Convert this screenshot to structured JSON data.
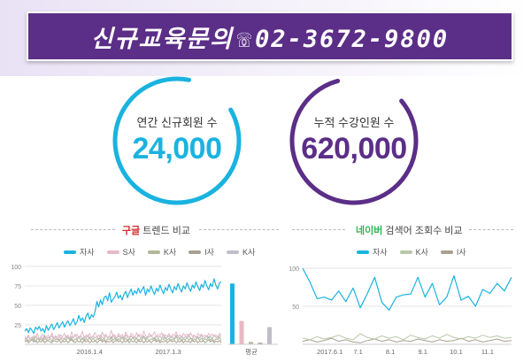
{
  "banner": {
    "text": "신규교육문의",
    "phone_glyph": "☏",
    "phone": "02-3672-9800"
  },
  "stats": [
    {
      "label": "연간 신규회원 수",
      "value": "24,000",
      "color": "#1ab3e0"
    },
    {
      "label": "누적 수강인원 수",
      "value": "620,000",
      "color": "#5b2e87"
    }
  ],
  "colors": {
    "accent_blue": "#1ab3e0",
    "accent_purple": "#5b2e87",
    "title_red": "#d42b2b",
    "title_green": "#2eb84f"
  },
  "chart_data": [
    {
      "type": "line",
      "title": {
        "highlight": "구글",
        "rest": " 트렌드 비교"
      },
      "legend": [
        "자사",
        "S사",
        "K사",
        "I사",
        "K사"
      ],
      "legend_colors": [
        "#1ab3e0",
        "#e8b8c4",
        "#b0b89a",
        "#a8a090",
        "#c0bcc8"
      ],
      "yticks": [
        25,
        50,
        75,
        100
      ],
      "ylim": [
        0,
        100
      ],
      "xticks": [
        {
          "label": "2016.1.4",
          "x": 0.33
        },
        {
          "label": "2017.1.3",
          "x": 0.73
        }
      ],
      "series": [
        {
          "values": [
            17,
            20,
            15,
            21,
            18,
            14,
            22,
            19,
            23,
            17,
            20,
            15,
            24,
            18,
            22,
            26,
            19,
            23,
            28,
            21,
            25,
            29,
            22,
            27,
            30,
            24,
            28,
            33,
            25,
            29,
            37,
            30,
            34,
            28,
            36,
            40,
            32,
            38,
            35,
            42,
            55,
            48,
            57,
            51,
            60,
            62,
            56,
            66,
            54,
            58,
            61,
            67,
            59,
            63,
            57,
            64,
            68,
            60,
            66,
            71,
            63,
            69,
            65,
            72,
            66,
            70,
            74,
            63,
            71,
            67,
            75,
            69,
            64,
            72,
            68,
            76,
            70,
            65,
            73,
            69,
            77,
            71,
            66,
            74,
            70,
            78,
            72,
            67,
            75,
            71,
            79,
            73,
            68,
            76,
            72,
            80,
            74,
            69,
            77,
            73,
            82,
            75,
            70,
            78,
            74,
            84,
            76,
            71,
            79,
            80
          ]
        },
        {
          "values": [
            10,
            7,
            12,
            6,
            9,
            11,
            8,
            14,
            7,
            10,
            13,
            6,
            9,
            12,
            8,
            15,
            7,
            11,
            9,
            13,
            6,
            10,
            14,
            8,
            12,
            7,
            16,
            9,
            11,
            13,
            8,
            10,
            17,
            7,
            12,
            9,
            14,
            8,
            11,
            15,
            9,
            12,
            7,
            16,
            10,
            13,
            8,
            11,
            18,
            9,
            12,
            7,
            14,
            10,
            13,
            8,
            16,
            11,
            9,
            14,
            12,
            8,
            15,
            10,
            13,
            9,
            17,
            11,
            8,
            14,
            10,
            12,
            16,
            9,
            13,
            11,
            15,
            8,
            12,
            10,
            14,
            9,
            13,
            11,
            16,
            10,
            12,
            8,
            14,
            11,
            13,
            9,
            15,
            10,
            12,
            8,
            14,
            11,
            13,
            10,
            12,
            9,
            14,
            11,
            13,
            10,
            12,
            9,
            14,
            12
          ]
        },
        {
          "values": [
            5,
            8,
            4,
            7,
            6,
            9,
            3,
            8,
            5,
            7,
            4,
            10,
            6,
            5,
            8,
            4,
            9,
            6,
            7,
            5,
            8,
            4,
            7,
            6,
            9,
            5,
            8,
            4,
            7,
            6,
            10,
            5,
            8,
            4,
            7,
            6,
            9,
            5,
            8,
            4,
            7,
            6,
            9,
            5,
            8,
            4,
            7,
            6,
            10,
            5,
            8,
            4,
            7,
            6,
            9,
            5,
            8,
            4,
            7,
            6,
            9,
            5,
            8,
            4,
            7,
            6,
            10,
            5,
            8,
            4,
            7,
            6,
            9,
            5,
            8,
            4,
            7,
            6,
            9,
            5,
            8,
            4,
            7,
            6,
            10,
            5,
            8,
            4,
            7,
            6,
            9,
            5,
            8,
            4,
            7,
            6,
            9,
            5,
            8,
            4,
            7,
            6,
            10,
            5,
            8,
            4,
            7,
            6,
            9,
            5
          ]
        },
        {
          "values": [
            3,
            5,
            2,
            4,
            6,
            3,
            5,
            2,
            4,
            3,
            6,
            2,
            4,
            5,
            3,
            2,
            5,
            4,
            3,
            6,
            2,
            4,
            3,
            5,
            2,
            4,
            6,
            3,
            2,
            5,
            3,
            4,
            2,
            6,
            3,
            5,
            2,
            4,
            3,
            5,
            2,
            4,
            6,
            3,
            5,
            2,
            4,
            3,
            5,
            2,
            4,
            6,
            3,
            5,
            2,
            4,
            3,
            6,
            2,
            5,
            3,
            4,
            2,
            6,
            3,
            5,
            2,
            4,
            3,
            5,
            2,
            4,
            6,
            3,
            5,
            2,
            4,
            3,
            5,
            2,
            4,
            6,
            3,
            5,
            2,
            4,
            3,
            6,
            2,
            5,
            3,
            4,
            2,
            6,
            3,
            5,
            2,
            4,
            3,
            5,
            2,
            4,
            6,
            3,
            5,
            2,
            4,
            3,
            5,
            2
          ]
        },
        {
          "values": [
            8,
            6,
            10,
            7,
            9,
            5,
            11,
            8,
            6,
            10,
            7,
            12,
            6,
            9,
            8,
            11,
            7,
            10,
            6,
            9,
            12,
            8,
            7,
            11,
            9,
            6,
            10,
            8,
            13,
            7,
            9,
            11,
            6,
            10,
            8,
            12,
            7,
            9,
            11,
            8,
            10,
            6,
            12,
            9,
            7,
            11,
            8,
            10,
            6,
            13,
            9,
            7,
            11,
            8,
            10,
            7,
            12,
            9,
            6,
            11,
            8,
            10,
            7,
            13,
            9,
            8,
            11,
            7,
            10,
            9,
            12,
            8,
            7,
            11,
            9,
            10,
            8,
            13,
            7,
            9,
            11,
            8,
            10,
            7,
            12,
            9,
            8,
            11,
            7,
            10,
            9,
            13,
            8,
            7,
            11,
            9,
            10,
            8,
            12,
            7,
            9,
            11,
            8,
            10,
            7,
            12,
            9,
            8,
            11,
            10
          ]
        }
      ],
      "average": {
        "label": "평균",
        "values": [
          78,
          30,
          3,
          2,
          22
        ]
      }
    },
    {
      "type": "line",
      "title": {
        "highlight": "네이버",
        "rest": " 검색어 조회수 비교"
      },
      "legend": [
        "자사",
        "K사",
        "I사"
      ],
      "legend_colors": [
        "#1ab3e0",
        "#b8c8a8",
        "#a8a090"
      ],
      "yticks": [
        50,
        100
      ],
      "ylim": [
        0,
        100
      ],
      "xticks": [
        {
          "label": "2017.6.1",
          "x": 0.13
        },
        {
          "label": "7.1",
          "x": 0.265
        },
        {
          "label": "8.1",
          "x": 0.42
        },
        {
          "label": "9.1",
          "x": 0.575
        },
        {
          "label": "10.1",
          "x": 0.735
        },
        {
          "label": "11.1",
          "x": 0.885
        }
      ],
      "series": [
        {
          "values": [
            100,
            82,
            60,
            62,
            58,
            70,
            56,
            74,
            48,
            67,
            88,
            55,
            45,
            62,
            65,
            66,
            88,
            62,
            80,
            52,
            62,
            90,
            58,
            63,
            50,
            72,
            67,
            80,
            70,
            88
          ]
        },
        {
          "values": [
            8,
            6,
            10,
            7,
            9,
            12,
            8,
            6,
            14,
            9,
            7,
            11,
            8,
            10,
            6,
            12,
            9,
            7,
            11,
            8,
            13,
            9,
            7,
            10,
            8,
            12,
            9,
            11,
            8,
            9
          ]
        },
        {
          "values": [
            4,
            6,
            3,
            5,
            8,
            4,
            6,
            3,
            2,
            5,
            7,
            4,
            6,
            3,
            5,
            4,
            7,
            5,
            3,
            6,
            4,
            5,
            8,
            4,
            6,
            3,
            5,
            7,
            4,
            5
          ]
        }
      ]
    }
  ]
}
